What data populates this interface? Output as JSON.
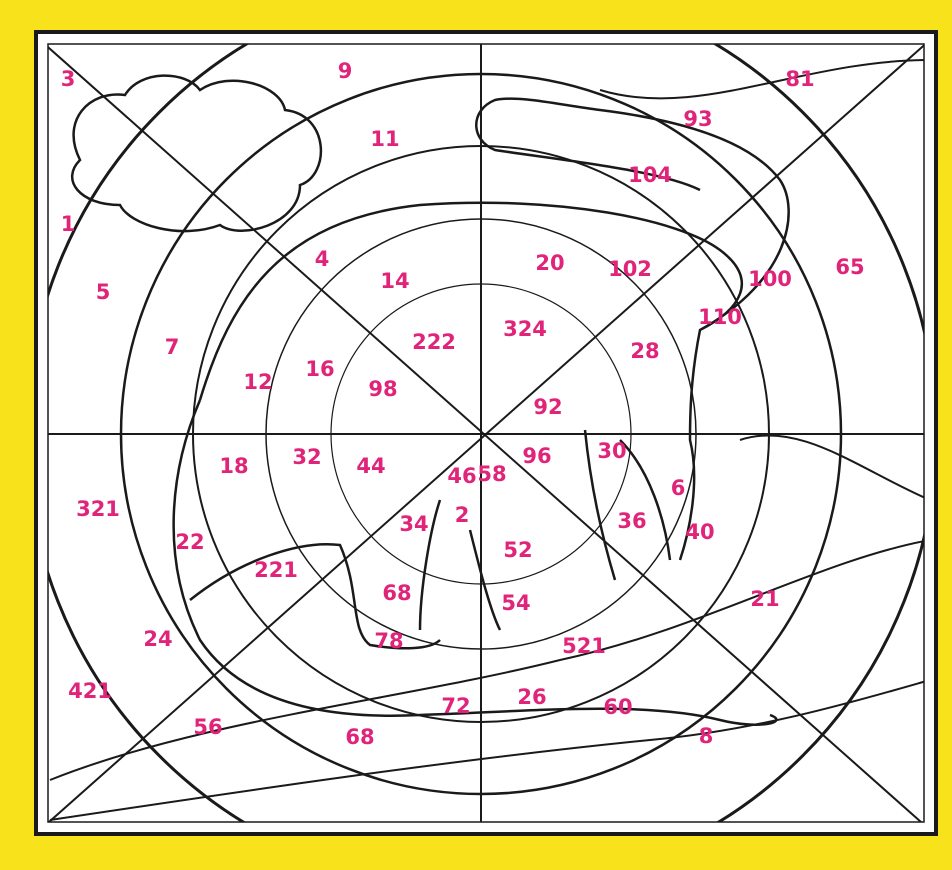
{
  "labels": [
    "3",
    "9",
    "81",
    "11",
    "93",
    "104",
    "1",
    "4",
    "14",
    "20",
    "102",
    "100",
    "65",
    "5",
    "110",
    "222",
    "324",
    "28",
    "7",
    "12",
    "16",
    "98",
    "92",
    "18",
    "32",
    "44",
    "46",
    "58",
    "96",
    "30",
    "6",
    "321",
    "34",
    "2",
    "36",
    "40",
    "22",
    "221",
    "52",
    "68",
    "54",
    "21",
    "24",
    "78",
    "521",
    "421",
    "26",
    "72",
    "60",
    "56",
    "68",
    "8"
  ]
}
